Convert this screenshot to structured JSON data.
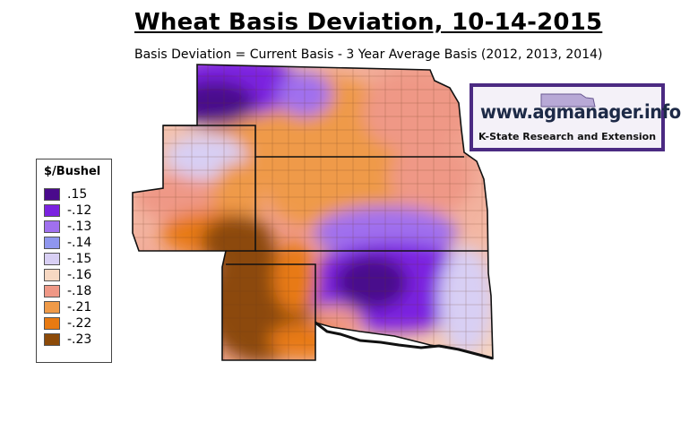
{
  "title": "Wheat Basis Deviation, 10-14-2015",
  "subtitle": "Basis Deviation = Current Basis - 3 Year Average Basis (2012, 2013, 2014)",
  "legend": {
    "title": "$/Bushel",
    "items": [
      {
        "label": ".15",
        "color": "#4a0a8c"
      },
      {
        "label": "-.12",
        "color": "#7b22e0"
      },
      {
        "label": "-.13",
        "color": "#a070ee"
      },
      {
        "label": "-.14",
        "color": "#8f96ee"
      },
      {
        "label": "-.15",
        "color": "#d8cff4"
      },
      {
        "label": "-.16",
        "color": "#f7d8c2"
      },
      {
        "label": "-.18",
        "color": "#ef9886"
      },
      {
        "label": "-.21",
        "color": "#ef9a48"
      },
      {
        "label": "-.22",
        "color": "#e87a12"
      },
      {
        "label": "-.23",
        "color": "#8c4a08"
      }
    ]
  },
  "logo": {
    "url": "www.agmanager.info",
    "sub": "K-State Research and Extension"
  }
}
